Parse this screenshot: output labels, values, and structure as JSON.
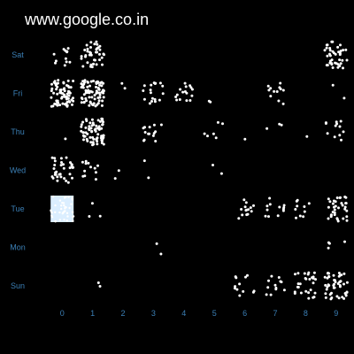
{
  "title": "www.google.co.in",
  "dot_color": "#ffffff",
  "dense_color": "#dbeeff",
  "axis_label_color": "#3b7fb5",
  "chart_data": {
    "type": "scatter",
    "title": "www.google.co.in",
    "y_categories": [
      "Sat",
      "Fri",
      "Thu",
      "Wed",
      "Tue",
      "Mon",
      "Sun"
    ],
    "x_ticks": [
      "0",
      "1",
      "2",
      "3",
      "4",
      "5",
      "6",
      "7",
      "8",
      "9"
    ],
    "x_range": [
      0,
      10
    ],
    "grid": false,
    "legend": "none",
    "cells": [
      {
        "day": "Sat",
        "x": 0,
        "count": 12
      },
      {
        "day": "Sat",
        "x": 1,
        "count": 40
      },
      {
        "day": "Sat",
        "x": 9,
        "count": 40
      },
      {
        "day": "Fri",
        "x": 0,
        "count": 70
      },
      {
        "day": "Fri",
        "x": 1,
        "count": 75
      },
      {
        "day": "Fri",
        "x": 2,
        "count": 2
      },
      {
        "day": "Fri",
        "x": 3,
        "count": 18
      },
      {
        "day": "Fri",
        "x": 4,
        "count": 16
      },
      {
        "day": "Fri",
        "x": 5,
        "count": 2
      },
      {
        "day": "Fri",
        "x": 7,
        "count": 12
      },
      {
        "day": "Fri",
        "x": 9,
        "count": 2
      },
      {
        "day": "Thu",
        "x": 0,
        "count": 1
      },
      {
        "day": "Thu",
        "x": 1,
        "count": 70
      },
      {
        "day": "Thu",
        "x": 3,
        "count": 14
      },
      {
        "day": "Thu",
        "x": 5,
        "count": 6
      },
      {
        "day": "Thu",
        "x": 6,
        "count": 1
      },
      {
        "day": "Thu",
        "x": 7,
        "count": 3
      },
      {
        "day": "Thu",
        "x": 8,
        "count": 1
      },
      {
        "day": "Thu",
        "x": 9,
        "count": 12
      },
      {
        "day": "Wed",
        "x": 0,
        "count": 34
      },
      {
        "day": "Wed",
        "x": 1,
        "count": 12
      },
      {
        "day": "Wed",
        "x": 2,
        "count": 2
      },
      {
        "day": "Wed",
        "x": 3,
        "count": 2
      },
      {
        "day": "Wed",
        "x": 5,
        "count": 2
      },
      {
        "day": "Tue",
        "x": 0,
        "count": 160
      },
      {
        "day": "Tue",
        "x": 1,
        "count": 3
      },
      {
        "day": "Tue",
        "x": 6,
        "count": 14
      },
      {
        "day": "Tue",
        "x": 7,
        "count": 12
      },
      {
        "day": "Tue",
        "x": 8,
        "count": 10
      },
      {
        "day": "Tue",
        "x": 9,
        "count": 35
      },
      {
        "day": "Mon",
        "x": 3,
        "count": 2
      },
      {
        "day": "Mon",
        "x": 9,
        "count": 4
      },
      {
        "day": "Sun",
        "x": 1,
        "count": 2
      },
      {
        "day": "Sun",
        "x": 6,
        "count": 12
      },
      {
        "day": "Sun",
        "x": 7,
        "count": 12
      },
      {
        "day": "Sun",
        "x": 8,
        "count": 28
      },
      {
        "day": "Sun",
        "x": 9,
        "count": 48
      }
    ]
  }
}
